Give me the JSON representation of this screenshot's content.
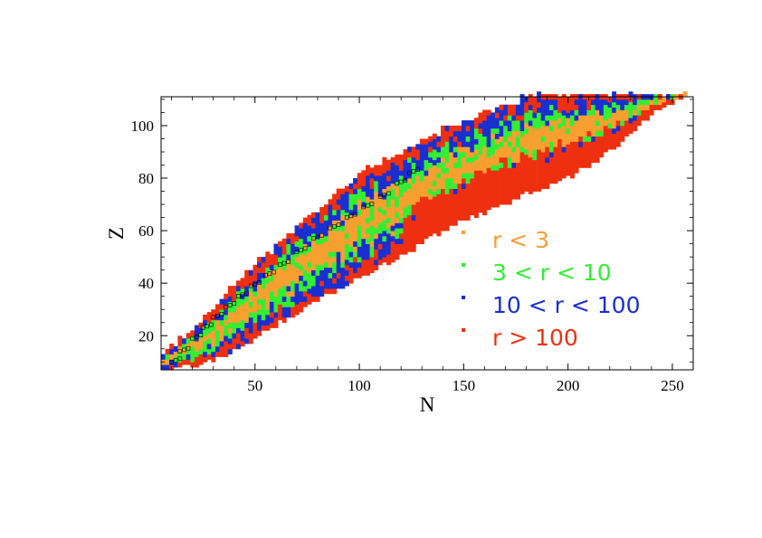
{
  "chart_data": {
    "type": "heatmap",
    "title": "",
    "xlabel": "N",
    "ylabel": "Z",
    "xlim": [
      5,
      260
    ],
    "ylim": [
      7,
      111
    ],
    "grid": false,
    "xticks": [
      50,
      100,
      150,
      200,
      250
    ],
    "yticks": [
      20,
      40,
      60,
      80,
      100
    ],
    "legend_placement": "lower-right inside plot",
    "series": [
      {
        "name": "r < 3",
        "color": "#f7a030"
      },
      {
        "name": "3 < r < 10",
        "color": "#33ee33"
      },
      {
        "name": "10 < r < 100",
        "color": "#1a2fd0"
      },
      {
        "name": "r > 100",
        "color": "#ee3010"
      }
    ],
    "stable_markers": {
      "note": "open black squares along the valley of stability",
      "x": [
        10,
        14,
        20,
        25,
        30,
        36,
        42,
        48,
        55,
        62,
        70,
        78,
        86,
        94,
        102,
        110,
        118,
        124
      ],
      "y": [
        10,
        14,
        19,
        23,
        27,
        31,
        35,
        39,
        43,
        47,
        52,
        57,
        61,
        65,
        69,
        73,
        78,
        82
      ]
    },
    "band_profile": {
      "note": "chart region covered by nuclide cells: for each N, the Z range from the proton drip edge to the neutron drip edge",
      "N": [
        5,
        20,
        40,
        60,
        80,
        100,
        120,
        140,
        160,
        180,
        200,
        220,
        240,
        255
      ],
      "Z_top": [
        12,
        22,
        39,
        54,
        68,
        81,
        89,
        98,
        104,
        110,
        111,
        111,
        111,
        111
      ],
      "Z_bottom": [
        7,
        8,
        14,
        24,
        33,
        42,
        50,
        60,
        67,
        74,
        80,
        90,
        104,
        110
      ]
    }
  }
}
